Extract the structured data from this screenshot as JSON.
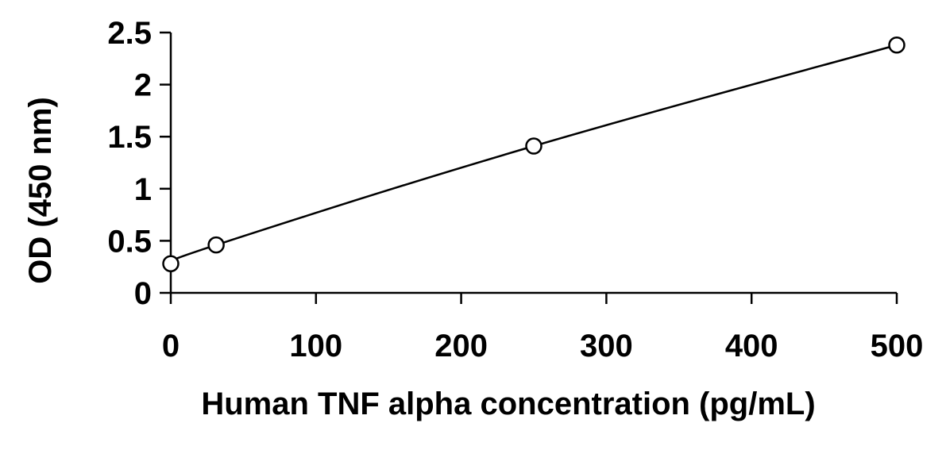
{
  "chart_data": {
    "type": "scatter",
    "xlabel": "Human TNF alpha concentration (pg/mL)",
    "ylabel": "OD (450 nm)",
    "xlim": [
      0,
      500
    ],
    "ylim": [
      0,
      2.5
    ],
    "x_ticks": [
      0,
      100,
      200,
      300,
      400,
      500
    ],
    "y_ticks": [
      0,
      0.5,
      1,
      1.5,
      2,
      2.5
    ],
    "x_tick_labels": [
      "0",
      "100",
      "200",
      "300",
      "400",
      "500"
    ],
    "y_tick_labels": [
      "0",
      "0.5",
      "1",
      "1.5",
      "2",
      "2.5"
    ],
    "grid": false,
    "legend": "none",
    "series": [
      {
        "points": [
          {
            "x": 0,
            "y": 0.28
          },
          {
            "x": 31.25,
            "y": 0.46
          },
          {
            "x": 250,
            "y": 1.41
          },
          {
            "x": 500,
            "y": 2.38
          }
        ],
        "line": "smooth",
        "marker": "open-circle",
        "color": "#000000"
      }
    ]
  }
}
